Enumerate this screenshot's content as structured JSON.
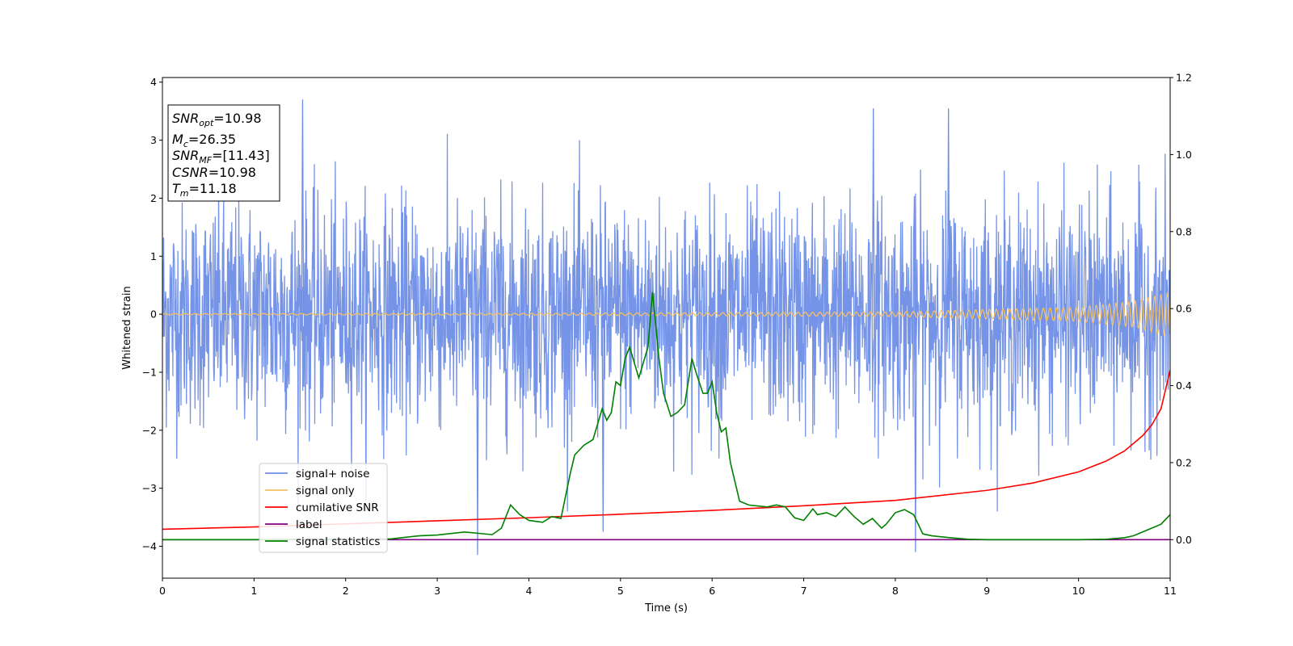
{
  "chart_data": {
    "type": "line",
    "xlabel": "Time (s)",
    "ylabel": "Whitened strain",
    "xlim": [
      0,
      11
    ],
    "ylim_left": [
      -4.55,
      4.08
    ],
    "ylim_right": [
      -0.1,
      1.2
    ],
    "x_ticks": [
      0,
      1,
      2,
      3,
      4,
      5,
      6,
      7,
      8,
      9,
      10,
      11
    ],
    "y_ticks_left": [
      -4,
      -3,
      -2,
      -1,
      0,
      1,
      2,
      3,
      4
    ],
    "y_ticks_right": [
      0.0,
      0.2,
      0.4,
      0.6,
      0.8,
      1.0,
      1.2
    ],
    "x_tick_labels": [
      "0",
      "1",
      "2",
      "3",
      "4",
      "5",
      "6",
      "7",
      "8",
      "9",
      "10",
      "11"
    ],
    "y_tick_labels_left": [
      "−4",
      "−3",
      "−2",
      "−1",
      "0",
      "1",
      "2",
      "3",
      "4"
    ],
    "y_tick_labels_right": [
      "0.0",
      "0.2",
      "0.4",
      "0.6",
      "0.8",
      "1.0",
      "1.2"
    ],
    "grid": false,
    "legend_position": "lower-left",
    "info_box": {
      "snr_opt": "10.98",
      "mc": "26.35",
      "snr_mf": "[11.43]",
      "csnr": "10.98",
      "tm": "11.18"
    },
    "series": [
      {
        "name": "signal+ noise",
        "color": "#6f8ee6",
        "axis": "left",
        "description_envelope": {
          "typical_amplitude": 1.0,
          "peak_max": 3.7,
          "peak_min": -4.15
        },
        "notable_spikes": [
          {
            "x": 1.53,
            "y": 3.7
          },
          {
            "x": 7.76,
            "y": 3.55
          },
          {
            "x": 8.58,
            "y": 3.55
          },
          {
            "x": 3.44,
            "y": -4.15
          },
          {
            "x": 8.22,
            "y": -4.1
          },
          {
            "x": 4.81,
            "y": -3.75
          }
        ]
      },
      {
        "name": "signal only",
        "color": "#f5c060",
        "axis": "left",
        "amplitude_profile": [
          {
            "x": 0.0,
            "amp": 0.01
          },
          {
            "x": 4.0,
            "amp": 0.015
          },
          {
            "x": 8.0,
            "amp": 0.04
          },
          {
            "x": 10.0,
            "amp": 0.12
          },
          {
            "x": 10.6,
            "amp": 0.22
          },
          {
            "x": 11.0,
            "amp": 0.38
          }
        ]
      },
      {
        "name": "cumilative SNR",
        "color": "#ff0000",
        "axis": "right",
        "x": [
          0,
          1,
          2,
          3,
          4,
          5,
          6,
          7,
          8,
          9,
          9.5,
          10,
          10.3,
          10.5,
          10.7,
          10.8,
          10.9,
          11.0
        ],
        "y": [
          0.027,
          0.033,
          0.041,
          0.049,
          0.057,
          0.066,
          0.076,
          0.088,
          0.102,
          0.128,
          0.147,
          0.176,
          0.204,
          0.23,
          0.27,
          0.298,
          0.34,
          0.44
        ]
      },
      {
        "name": "label",
        "color": "#800080",
        "axis": "right",
        "x": [
          0,
          11
        ],
        "y": [
          0.0,
          0.0
        ]
      },
      {
        "name": "signal statistics",
        "color": "#008000",
        "axis": "right",
        "x": [
          0,
          0.5,
          1.0,
          1.5,
          2.0,
          2.5,
          2.8,
          3.0,
          3.3,
          3.6,
          3.7,
          3.8,
          3.9,
          4.0,
          4.15,
          4.25,
          4.35,
          4.45,
          4.5,
          4.6,
          4.7,
          4.8,
          4.85,
          4.9,
          4.95,
          5.0,
          5.05,
          5.1,
          5.15,
          5.2,
          5.3,
          5.35,
          5.42,
          5.47,
          5.55,
          5.62,
          5.7,
          5.78,
          5.83,
          5.9,
          5.95,
          6.0,
          6.05,
          6.1,
          6.15,
          6.2,
          6.3,
          6.4,
          6.6,
          6.7,
          6.8,
          6.9,
          7.0,
          7.1,
          7.15,
          7.25,
          7.35,
          7.45,
          7.55,
          7.65,
          7.75,
          7.85,
          7.9,
          8.0,
          8.1,
          8.2,
          8.25,
          8.3,
          8.4,
          8.6,
          8.8,
          9.0,
          9.5,
          10.0,
          10.3,
          10.5,
          10.6,
          10.7,
          10.8,
          10.9,
          11.0
        ],
        "y": [
          0.0,
          0.0,
          0.0,
          0.001,
          0.001,
          0.002,
          0.01,
          0.012,
          0.02,
          0.013,
          0.03,
          0.09,
          0.065,
          0.05,
          0.045,
          0.06,
          0.055,
          0.17,
          0.22,
          0.245,
          0.26,
          0.34,
          0.31,
          0.33,
          0.41,
          0.4,
          0.47,
          0.5,
          0.46,
          0.42,
          0.5,
          0.643,
          0.47,
          0.38,
          0.32,
          0.33,
          0.35,
          0.47,
          0.43,
          0.38,
          0.38,
          0.41,
          0.33,
          0.28,
          0.29,
          0.2,
          0.1,
          0.09,
          0.085,
          0.09,
          0.085,
          0.057,
          0.05,
          0.08,
          0.065,
          0.07,
          0.06,
          0.085,
          0.06,
          0.04,
          0.055,
          0.03,
          0.04,
          0.07,
          0.078,
          0.065,
          0.04,
          0.015,
          0.01,
          0.005,
          0.001,
          0.0,
          0.0,
          0.0,
          0.001,
          0.005,
          0.01,
          0.02,
          0.03,
          0.04,
          0.065
        ]
      }
    ]
  }
}
